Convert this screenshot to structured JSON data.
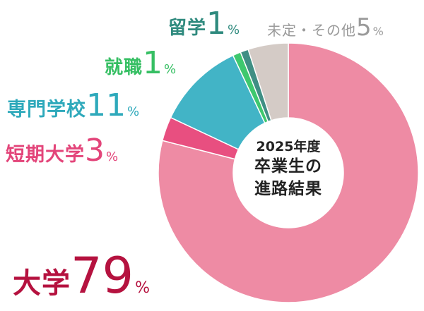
{
  "chart_data": {
    "type": "pie",
    "center_label": {
      "year": "2025年度",
      "line1": "卒業生の",
      "line2": "進路結果"
    },
    "slices": [
      {
        "name": "大学",
        "value": 79,
        "unit": "%",
        "color": "#ee8ba4"
      },
      {
        "name": "短期大学",
        "value": 3,
        "unit": "%",
        "color": "#e84f80"
      },
      {
        "name": "専門学校",
        "value": 11,
        "unit": "%",
        "color": "#42b4c6"
      },
      {
        "name": "就職",
        "value": 1,
        "unit": "%",
        "color": "#3ec86e"
      },
      {
        "name": "留学",
        "value": 1,
        "unit": "%",
        "color": "#3f8f84"
      },
      {
        "name": "未定・その他",
        "value": 5,
        "unit": "%",
        "color": "#d4cbc6"
      }
    ]
  }
}
